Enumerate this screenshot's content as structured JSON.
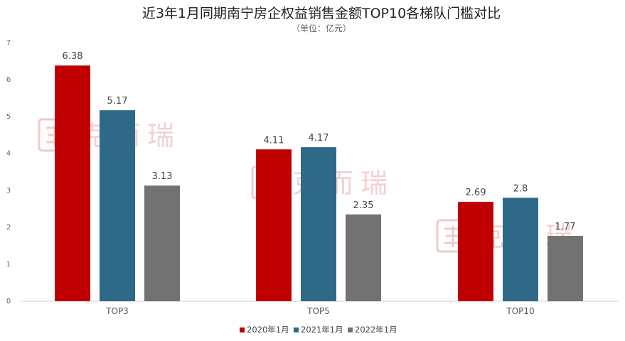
{
  "chart_data": {
    "type": "bar",
    "title": "近3年1月同期南宁房企权益销售金额TOP10各梯队门槛对比",
    "subtitle": "（单位：亿元）",
    "categories": [
      "TOP3",
      "TOP5",
      "TOP10"
    ],
    "series": [
      {
        "name": "2020年1月",
        "values": [
          6.38,
          4.11,
          2.69
        ],
        "color": "#c00000"
      },
      {
        "name": "2021年1月",
        "values": [
          5.17,
          4.17,
          2.8
        ],
        "color": "#2e6a88"
      },
      {
        "name": "2022年1月",
        "values": [
          3.13,
          2.35,
          1.77
        ],
        "color": "#727272"
      }
    ],
    "ylim": [
      0,
      7
    ],
    "yticks": [
      0,
      1,
      2,
      3,
      4,
      5,
      6,
      7
    ],
    "grid": false,
    "legend": "bottom-center"
  },
  "watermark": {
    "text": "克而瑞",
    "color": "#f0c9c9"
  }
}
